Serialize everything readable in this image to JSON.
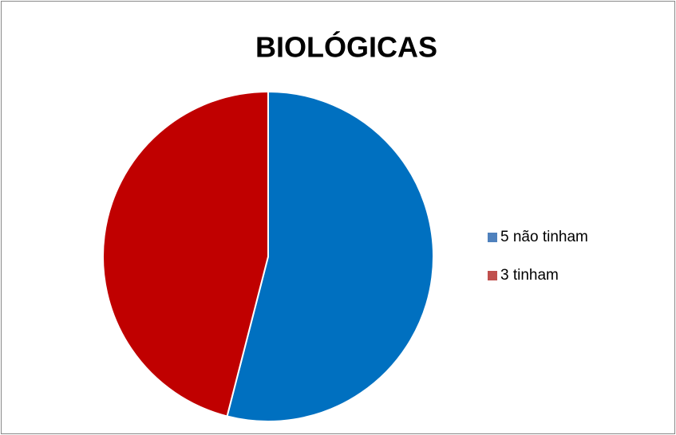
{
  "chart_data": {
    "type": "pie",
    "title": "BIOLÓGICAS",
    "categories": [
      "5 não tinham",
      "3 tinham"
    ],
    "values": [
      54,
      46
    ],
    "colors": [
      "#0070c0",
      "#c00000"
    ],
    "legend_colors": [
      "#4f81bd",
      "#c0504d"
    ],
    "legend": "right"
  }
}
